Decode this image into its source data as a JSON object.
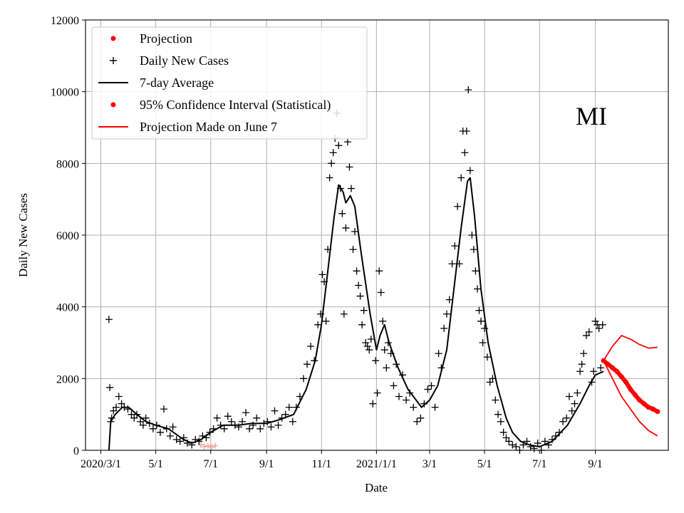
{
  "chart_data": {
    "type": "line",
    "xlabel": "Date",
    "ylabel": "Daily New Cases",
    "annotation": "MI",
    "x_range": [
      "2020-02-13",
      "2021-11-21"
    ],
    "ylim": [
      0,
      12000
    ],
    "grid": true,
    "legend_position": "top-left",
    "x_ticks": [
      {
        "date": "2020-03-01",
        "label": "2020/3/1"
      },
      {
        "date": "2020-05-01",
        "label": "5/1"
      },
      {
        "date": "2020-07-01",
        "label": "7/1"
      },
      {
        "date": "2020-09-01",
        "label": "9/1"
      },
      {
        "date": "2020-11-01",
        "label": "11/1"
      },
      {
        "date": "2021-01-01",
        "label": "2021/1/1"
      },
      {
        "date": "2021-03-01",
        "label": "3/1"
      },
      {
        "date": "2021-05-01",
        "label": "5/1"
      },
      {
        "date": "2021-07-01",
        "label": "7/1"
      },
      {
        "date": "2021-09-01",
        "label": "9/1"
      }
    ],
    "y_ticks": [
      0,
      2000,
      4000,
      6000,
      8000,
      10000,
      12000
    ],
    "legend": [
      {
        "label": "Projection",
        "marker": "dot",
        "color": "#ff0000"
      },
      {
        "label": "Daily New Cases",
        "marker": "plus",
        "color": "#000000"
      },
      {
        "label": "7-day Average",
        "marker": "line",
        "color": "#000000"
      },
      {
        "label": "95% Confidence Interval (Statistical)",
        "marker": "dot",
        "color": "#ff0000"
      },
      {
        "label": "Projection Made on June 7",
        "marker": "line",
        "color": "#ff0000"
      }
    ],
    "series": [
      {
        "name": "7-day Average",
        "color": "#000000",
        "points": [
          [
            "2020-03-10",
            0
          ],
          [
            "2020-03-12",
            800
          ],
          [
            "2020-03-17",
            1000
          ],
          [
            "2020-03-25",
            1200
          ],
          [
            "2020-04-01",
            1200
          ],
          [
            "2020-04-10",
            1000
          ],
          [
            "2020-04-20",
            800
          ],
          [
            "2020-05-01",
            700
          ],
          [
            "2020-05-15",
            600
          ],
          [
            "2020-06-01",
            300
          ],
          [
            "2020-06-10",
            200
          ],
          [
            "2020-06-20",
            300
          ],
          [
            "2020-07-01",
            500
          ],
          [
            "2020-07-15",
            700
          ],
          [
            "2020-08-01",
            700
          ],
          [
            "2020-08-15",
            750
          ],
          [
            "2020-09-01",
            750
          ],
          [
            "2020-09-15",
            850
          ],
          [
            "2020-10-01",
            1000
          ],
          [
            "2020-10-15",
            1700
          ],
          [
            "2020-10-25",
            2500
          ],
          [
            "2020-11-01",
            3500
          ],
          [
            "2020-11-08",
            5000
          ],
          [
            "2020-11-15",
            6500
          ],
          [
            "2020-11-20",
            7400
          ],
          [
            "2020-11-25",
            7200
          ],
          [
            "2020-11-28",
            6900
          ],
          [
            "2020-12-03",
            7100
          ],
          [
            "2020-12-08",
            6800
          ],
          [
            "2020-12-15",
            5500
          ],
          [
            "2020-12-25",
            3800
          ],
          [
            "2021-01-01",
            2800
          ],
          [
            "2021-01-05",
            3200
          ],
          [
            "2021-01-10",
            3500
          ],
          [
            "2021-01-15",
            3000
          ],
          [
            "2021-01-25",
            2300
          ],
          [
            "2021-02-05",
            1700
          ],
          [
            "2021-02-20",
            1200
          ],
          [
            "2021-03-01",
            1400
          ],
          [
            "2021-03-10",
            1800
          ],
          [
            "2021-03-20",
            2800
          ],
          [
            "2021-03-28",
            4500
          ],
          [
            "2021-04-05",
            6200
          ],
          [
            "2021-04-12",
            7500
          ],
          [
            "2021-04-15",
            7600
          ],
          [
            "2021-04-20",
            6500
          ],
          [
            "2021-04-27",
            4500
          ],
          [
            "2021-05-05",
            3000
          ],
          [
            "2021-05-15",
            1800
          ],
          [
            "2021-05-25",
            900
          ],
          [
            "2021-06-01",
            500
          ],
          [
            "2021-06-10",
            250
          ],
          [
            "2021-06-20",
            150
          ],
          [
            "2021-07-01",
            100
          ],
          [
            "2021-07-15",
            250
          ],
          [
            "2021-08-01",
            700
          ],
          [
            "2021-08-15",
            1300
          ],
          [
            "2021-08-25",
            1800
          ],
          [
            "2021-09-01",
            2100
          ],
          [
            "2021-09-10",
            2200
          ]
        ]
      },
      {
        "name": "Projection Made on June 7",
        "color": "#ff0000",
        "role": "upper",
        "points": [
          [
            "2021-09-10",
            2500
          ],
          [
            "2021-09-20",
            2900
          ],
          [
            "2021-09-30",
            3200
          ],
          [
            "2021-10-10",
            3100
          ],
          [
            "2021-10-20",
            2950
          ],
          [
            "2021-10-30",
            2850
          ],
          [
            "2021-11-09",
            2870
          ]
        ]
      },
      {
        "name": "Projection Made on June 7",
        "color": "#ff0000",
        "role": "lower",
        "points": [
          [
            "2021-09-10",
            2500
          ],
          [
            "2021-09-20",
            2000
          ],
          [
            "2021-09-30",
            1500
          ],
          [
            "2021-10-10",
            1150
          ],
          [
            "2021-10-20",
            800
          ],
          [
            "2021-10-30",
            550
          ],
          [
            "2021-11-09",
            400
          ]
        ]
      },
      {
        "name": "Projection",
        "color": "#ff0000",
        "role": "projection",
        "points": [
          [
            "2021-09-10",
            2500
          ],
          [
            "2021-09-15",
            2400
          ],
          [
            "2021-09-20",
            2300
          ],
          [
            "2021-09-25",
            2200
          ],
          [
            "2021-09-30",
            2050
          ],
          [
            "2021-10-05",
            1900
          ],
          [
            "2021-10-10",
            1700
          ],
          [
            "2021-10-15",
            1550
          ],
          [
            "2021-10-20",
            1400
          ],
          [
            "2021-10-25",
            1300
          ],
          [
            "2021-10-30",
            1200
          ],
          [
            "2021-11-04",
            1150
          ],
          [
            "2021-11-09",
            1080
          ]
        ]
      }
    ],
    "daily_cases": [
      [
        "2020-03-10",
        3650
      ],
      [
        "2020-03-11",
        1750
      ],
      [
        "2020-03-12",
        800
      ],
      [
        "2020-03-13",
        900
      ],
      [
        "2020-03-15",
        1100
      ],
      [
        "2020-03-18",
        1200
      ],
      [
        "2020-03-21",
        1500
      ],
      [
        "2020-03-24",
        1300
      ],
      [
        "2020-03-27",
        1200
      ],
      [
        "2020-03-31",
        1150
      ],
      [
        "2020-04-04",
        1000
      ],
      [
        "2020-04-07",
        900
      ],
      [
        "2020-04-10",
        1000
      ],
      [
        "2020-04-14",
        800
      ],
      [
        "2020-04-17",
        700
      ],
      [
        "2020-04-20",
        900
      ],
      [
        "2020-04-24",
        750
      ],
      [
        "2020-04-28",
        600
      ],
      [
        "2020-05-02",
        700
      ],
      [
        "2020-05-06",
        500
      ],
      [
        "2020-05-10",
        1150
      ],
      [
        "2020-05-13",
        600
      ],
      [
        "2020-05-17",
        400
      ],
      [
        "2020-05-20",
        650
      ],
      [
        "2020-05-24",
        300
      ],
      [
        "2020-05-28",
        250
      ],
      [
        "2020-06-01",
        350
      ],
      [
        "2020-06-05",
        200
      ],
      [
        "2020-06-10",
        150
      ],
      [
        "2020-06-14",
        300
      ],
      [
        "2020-06-18",
        250
      ],
      [
        "2020-06-22",
        400
      ],
      [
        "2020-06-26",
        350
      ],
      [
        "2020-06-30",
        500
      ],
      [
        "2020-07-04",
        600
      ],
      [
        "2020-07-08",
        900
      ],
      [
        "2020-07-12",
        700
      ],
      [
        "2020-07-16",
        600
      ],
      [
        "2020-07-20",
        950
      ],
      [
        "2020-07-24",
        800
      ],
      [
        "2020-07-28",
        700
      ],
      [
        "2020-08-01",
        650
      ],
      [
        "2020-08-05",
        800
      ],
      [
        "2020-08-09",
        1050
      ],
      [
        "2020-08-13",
        600
      ],
      [
        "2020-08-17",
        700
      ],
      [
        "2020-08-21",
        900
      ],
      [
        "2020-08-25",
        600
      ],
      [
        "2020-08-29",
        750
      ],
      [
        "2020-09-02",
        800
      ],
      [
        "2020-09-06",
        650
      ],
      [
        "2020-09-10",
        1100
      ],
      [
        "2020-09-14",
        700
      ],
      [
        "2020-09-18",
        900
      ],
      [
        "2020-09-22",
        1000
      ],
      [
        "2020-09-26",
        1200
      ],
      [
        "2020-09-30",
        800
      ],
      [
        "2020-10-04",
        1200
      ],
      [
        "2020-10-08",
        1500
      ],
      [
        "2020-10-12",
        2000
      ],
      [
        "2020-10-16",
        2400
      ],
      [
        "2020-10-20",
        2900
      ],
      [
        "2020-10-24",
        2500
      ],
      [
        "2020-10-28",
        3500
      ],
      [
        "2020-10-31",
        3800
      ],
      [
        "2020-11-02",
        4900
      ],
      [
        "2020-11-04",
        4700
      ],
      [
        "2020-11-06",
        3600
      ],
      [
        "2020-11-08",
        5600
      ],
      [
        "2020-11-10",
        7600
      ],
      [
        "2020-11-12",
        8000
      ],
      [
        "2020-11-14",
        8300
      ],
      [
        "2020-11-16",
        8700
      ],
      [
        "2020-11-18",
        9400
      ],
      [
        "2020-11-20",
        8500
      ],
      [
        "2020-11-22",
        7300
      ],
      [
        "2020-11-24",
        6600
      ],
      [
        "2020-11-26",
        3800
      ],
      [
        "2020-11-28",
        6200
      ],
      [
        "2020-11-30",
        8600
      ],
      [
        "2020-12-02",
        7900
      ],
      [
        "2020-12-04",
        7300
      ],
      [
        "2020-12-06",
        5600
      ],
      [
        "2020-12-08",
        6100
      ],
      [
        "2020-12-10",
        5000
      ],
      [
        "2020-12-12",
        4600
      ],
      [
        "2020-12-14",
        4300
      ],
      [
        "2020-12-16",
        3500
      ],
      [
        "2020-12-18",
        3900
      ],
      [
        "2020-12-20",
        3000
      ],
      [
        "2020-12-22",
        2900
      ],
      [
        "2020-12-24",
        2800
      ],
      [
        "2020-12-26",
        3100
      ],
      [
        "2020-12-28",
        1300
      ],
      [
        "2020-12-31",
        2500
      ],
      [
        "2021-01-02",
        1600
      ],
      [
        "2021-01-04",
        5000
      ],
      [
        "2021-01-06",
        4400
      ],
      [
        "2021-01-08",
        3600
      ],
      [
        "2021-01-10",
        2800
      ],
      [
        "2021-01-12",
        2300
      ],
      [
        "2021-01-14",
        3000
      ],
      [
        "2021-01-17",
        2700
      ],
      [
        "2021-01-20",
        1800
      ],
      [
        "2021-01-23",
        2400
      ],
      [
        "2021-01-26",
        1500
      ],
      [
        "2021-01-30",
        2100
      ],
      [
        "2021-02-03",
        1400
      ],
      [
        "2021-02-07",
        1600
      ],
      [
        "2021-02-11",
        1200
      ],
      [
        "2021-02-15",
        800
      ],
      [
        "2021-02-19",
        900
      ],
      [
        "2021-02-23",
        1300
      ],
      [
        "2021-02-27",
        1700
      ],
      [
        "2021-03-03",
        1800
      ],
      [
        "2021-03-07",
        1200
      ],
      [
        "2021-03-11",
        2700
      ],
      [
        "2021-03-14",
        2300
      ],
      [
        "2021-03-17",
        3400
      ],
      [
        "2021-03-20",
        3800
      ],
      [
        "2021-03-23",
        4200
      ],
      [
        "2021-03-26",
        5200
      ],
      [
        "2021-03-29",
        5700
      ],
      [
        "2021-04-01",
        6800
      ],
      [
        "2021-04-03",
        5200
      ],
      [
        "2021-04-05",
        7600
      ],
      [
        "2021-04-07",
        8900
      ],
      [
        "2021-04-09",
        8300
      ],
      [
        "2021-04-11",
        8900
      ],
      [
        "2021-04-13",
        10050
      ],
      [
        "2021-04-15",
        7800
      ],
      [
        "2021-04-17",
        6000
      ],
      [
        "2021-04-19",
        5600
      ],
      [
        "2021-04-21",
        5000
      ],
      [
        "2021-04-23",
        4500
      ],
      [
        "2021-04-25",
        3900
      ],
      [
        "2021-04-27",
        3600
      ],
      [
        "2021-04-29",
        3000
      ],
      [
        "2021-05-01",
        3400
      ],
      [
        "2021-05-04",
        2600
      ],
      [
        "2021-05-07",
        1900
      ],
      [
        "2021-05-10",
        2000
      ],
      [
        "2021-05-13",
        1400
      ],
      [
        "2021-05-16",
        1000
      ],
      [
        "2021-05-19",
        800
      ],
      [
        "2021-05-22",
        500
      ],
      [
        "2021-05-25",
        350
      ],
      [
        "2021-05-28",
        250
      ],
      [
        "2021-06-01",
        150
      ],
      [
        "2021-06-05",
        100
      ],
      [
        "2021-06-09",
        0
      ],
      [
        "2021-06-13",
        150
      ],
      [
        "2021-06-17",
        250
      ],
      [
        "2021-06-21",
        100
      ],
      [
        "2021-06-25",
        50
      ],
      [
        "2021-06-29",
        200
      ],
      [
        "2021-07-03",
        0
      ],
      [
        "2021-07-07",
        250
      ],
      [
        "2021-07-11",
        150
      ],
      [
        "2021-07-15",
        300
      ],
      [
        "2021-07-19",
        400
      ],
      [
        "2021-07-23",
        500
      ],
      [
        "2021-07-27",
        800
      ],
      [
        "2021-07-31",
        900
      ],
      [
        "2021-08-03",
        1500
      ],
      [
        "2021-08-06",
        1100
      ],
      [
        "2021-08-09",
        1300
      ],
      [
        "2021-08-12",
        1600
      ],
      [
        "2021-08-15",
        2200
      ],
      [
        "2021-08-17",
        2400
      ],
      [
        "2021-08-19",
        2700
      ],
      [
        "2021-08-22",
        3200
      ],
      [
        "2021-08-25",
        3300
      ],
      [
        "2021-08-28",
        1900
      ],
      [
        "2021-08-30",
        2200
      ],
      [
        "2021-09-01",
        3600
      ],
      [
        "2021-09-03",
        3500
      ],
      [
        "2021-09-05",
        3400
      ],
      [
        "2021-09-07",
        2300
      ],
      [
        "2021-09-09",
        3500
      ]
    ],
    "early_projection_markers": [
      [
        "2020-06-20",
        150
      ],
      [
        "2020-06-24",
        100
      ],
      [
        "2020-06-28",
        120
      ],
      [
        "2020-07-02",
        90
      ],
      [
        "2020-07-06",
        130
      ]
    ]
  }
}
